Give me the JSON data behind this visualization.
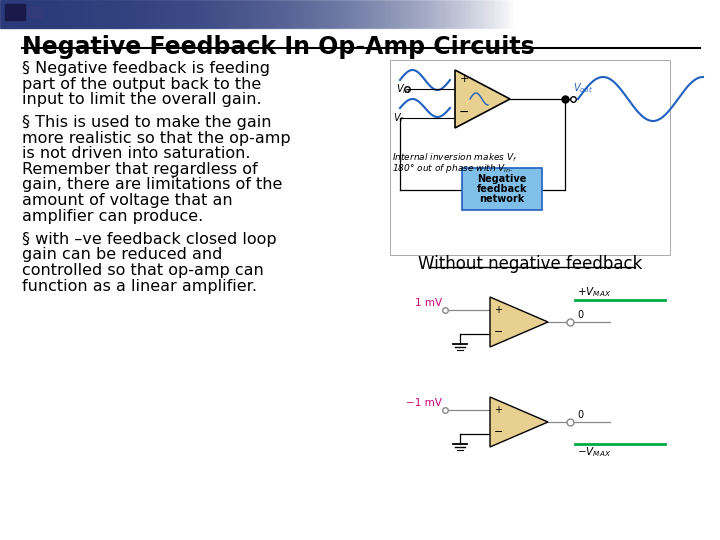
{
  "title": "Negative Feedback In Op-Amp Circuits",
  "background_color": "#ffffff",
  "bullet1_lines": [
    "§ Negative feedback is feeding",
    "part of the output back to the",
    "input to limit the overall gain."
  ],
  "bullet2_lines": [
    "§ This is used to make the gain",
    "more realistic so that the op-amp",
    "is not driven into saturation.",
    "Remember that regardless of",
    "gain, there are limitations of the",
    "amount of voltage that an",
    "amplifier can produce."
  ],
  "bullet3_lines": [
    "§ with –ve feedback closed loop",
    "gain can be reduced and",
    "controlled so that op-amp can",
    "function as a linear amplifier."
  ],
  "without_feedback_label": "Without negative feedback",
  "text_color": "#000000",
  "title_color": "#000000",
  "font_size_title": 17,
  "font_size_body": 11.5,
  "font_size_label": 12,
  "opamp_color": "#e8d090",
  "wave_color": "#2060c0",
  "fb_box_color": "#80c0e8",
  "fb_box_edge": "#2060c0",
  "green_line_color": "#00aa44",
  "pink_label_color": "#cc0077",
  "header_color": "#2a3a7a"
}
